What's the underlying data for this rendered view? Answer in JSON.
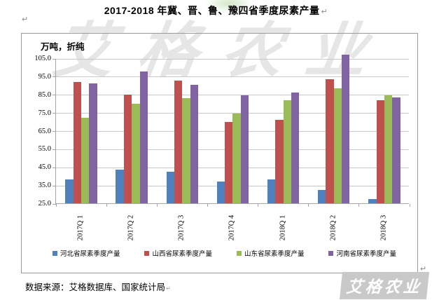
{
  "page": {
    "title": "2017-2018 年冀、晋、鲁、豫四省季度尿素产量",
    "pilcrow": "↵",
    "source_note": "数据来源：艾格数据库、国家统计局",
    "watermark_top_text": "艾格农业",
    "watermark_bottom_text": "艾格农业"
  },
  "chart_data": {
    "type": "bar",
    "title": "2017-2018年冀、晋、鲁、豫四省季度尿素产量",
    "unit_label": "万吨，折纯",
    "categories": [
      "2017Q 1",
      "2017Q 2",
      "2017Q 3",
      "2017Q 4",
      "2018Q 1",
      "2018Q 2",
      "2018Q 3"
    ],
    "series": [
      {
        "name": "河北省尿素季度产量",
        "color": "#4F81BD",
        "values": [
          38,
          43.5,
          42.5,
          37,
          38,
          32.5,
          27.5
        ]
      },
      {
        "name": "山西省尿素季度产量",
        "color": "#C0504D",
        "values": [
          92,
          85,
          92.5,
          70,
          71,
          93.5,
          82
        ]
      },
      {
        "name": "山东省尿素季度产量",
        "color": "#9BBB59",
        "values": [
          72,
          80,
          83,
          74.5,
          82,
          88.5,
          84.5
        ]
      },
      {
        "name": "河南省尿素季度产量",
        "color": "#8064A2",
        "values": [
          91,
          97.5,
          90.5,
          84.5,
          86,
          107,
          83.5
        ]
      }
    ],
    "ylim": [
      25,
      105
    ],
    "ytick_values": [
      105,
      95,
      85,
      75,
      65,
      55,
      45,
      35,
      25
    ],
    "ytick_labels": [
      "105.0",
      "95.0",
      "85.0",
      "75.0",
      "65.0",
      "55.0",
      "45.0",
      "35.0",
      "25.0"
    ],
    "grid": true,
    "legend_position": "bottom",
    "colors": {
      "gridline": "#c8c8c8",
      "axis": "#a6a6a6"
    }
  }
}
